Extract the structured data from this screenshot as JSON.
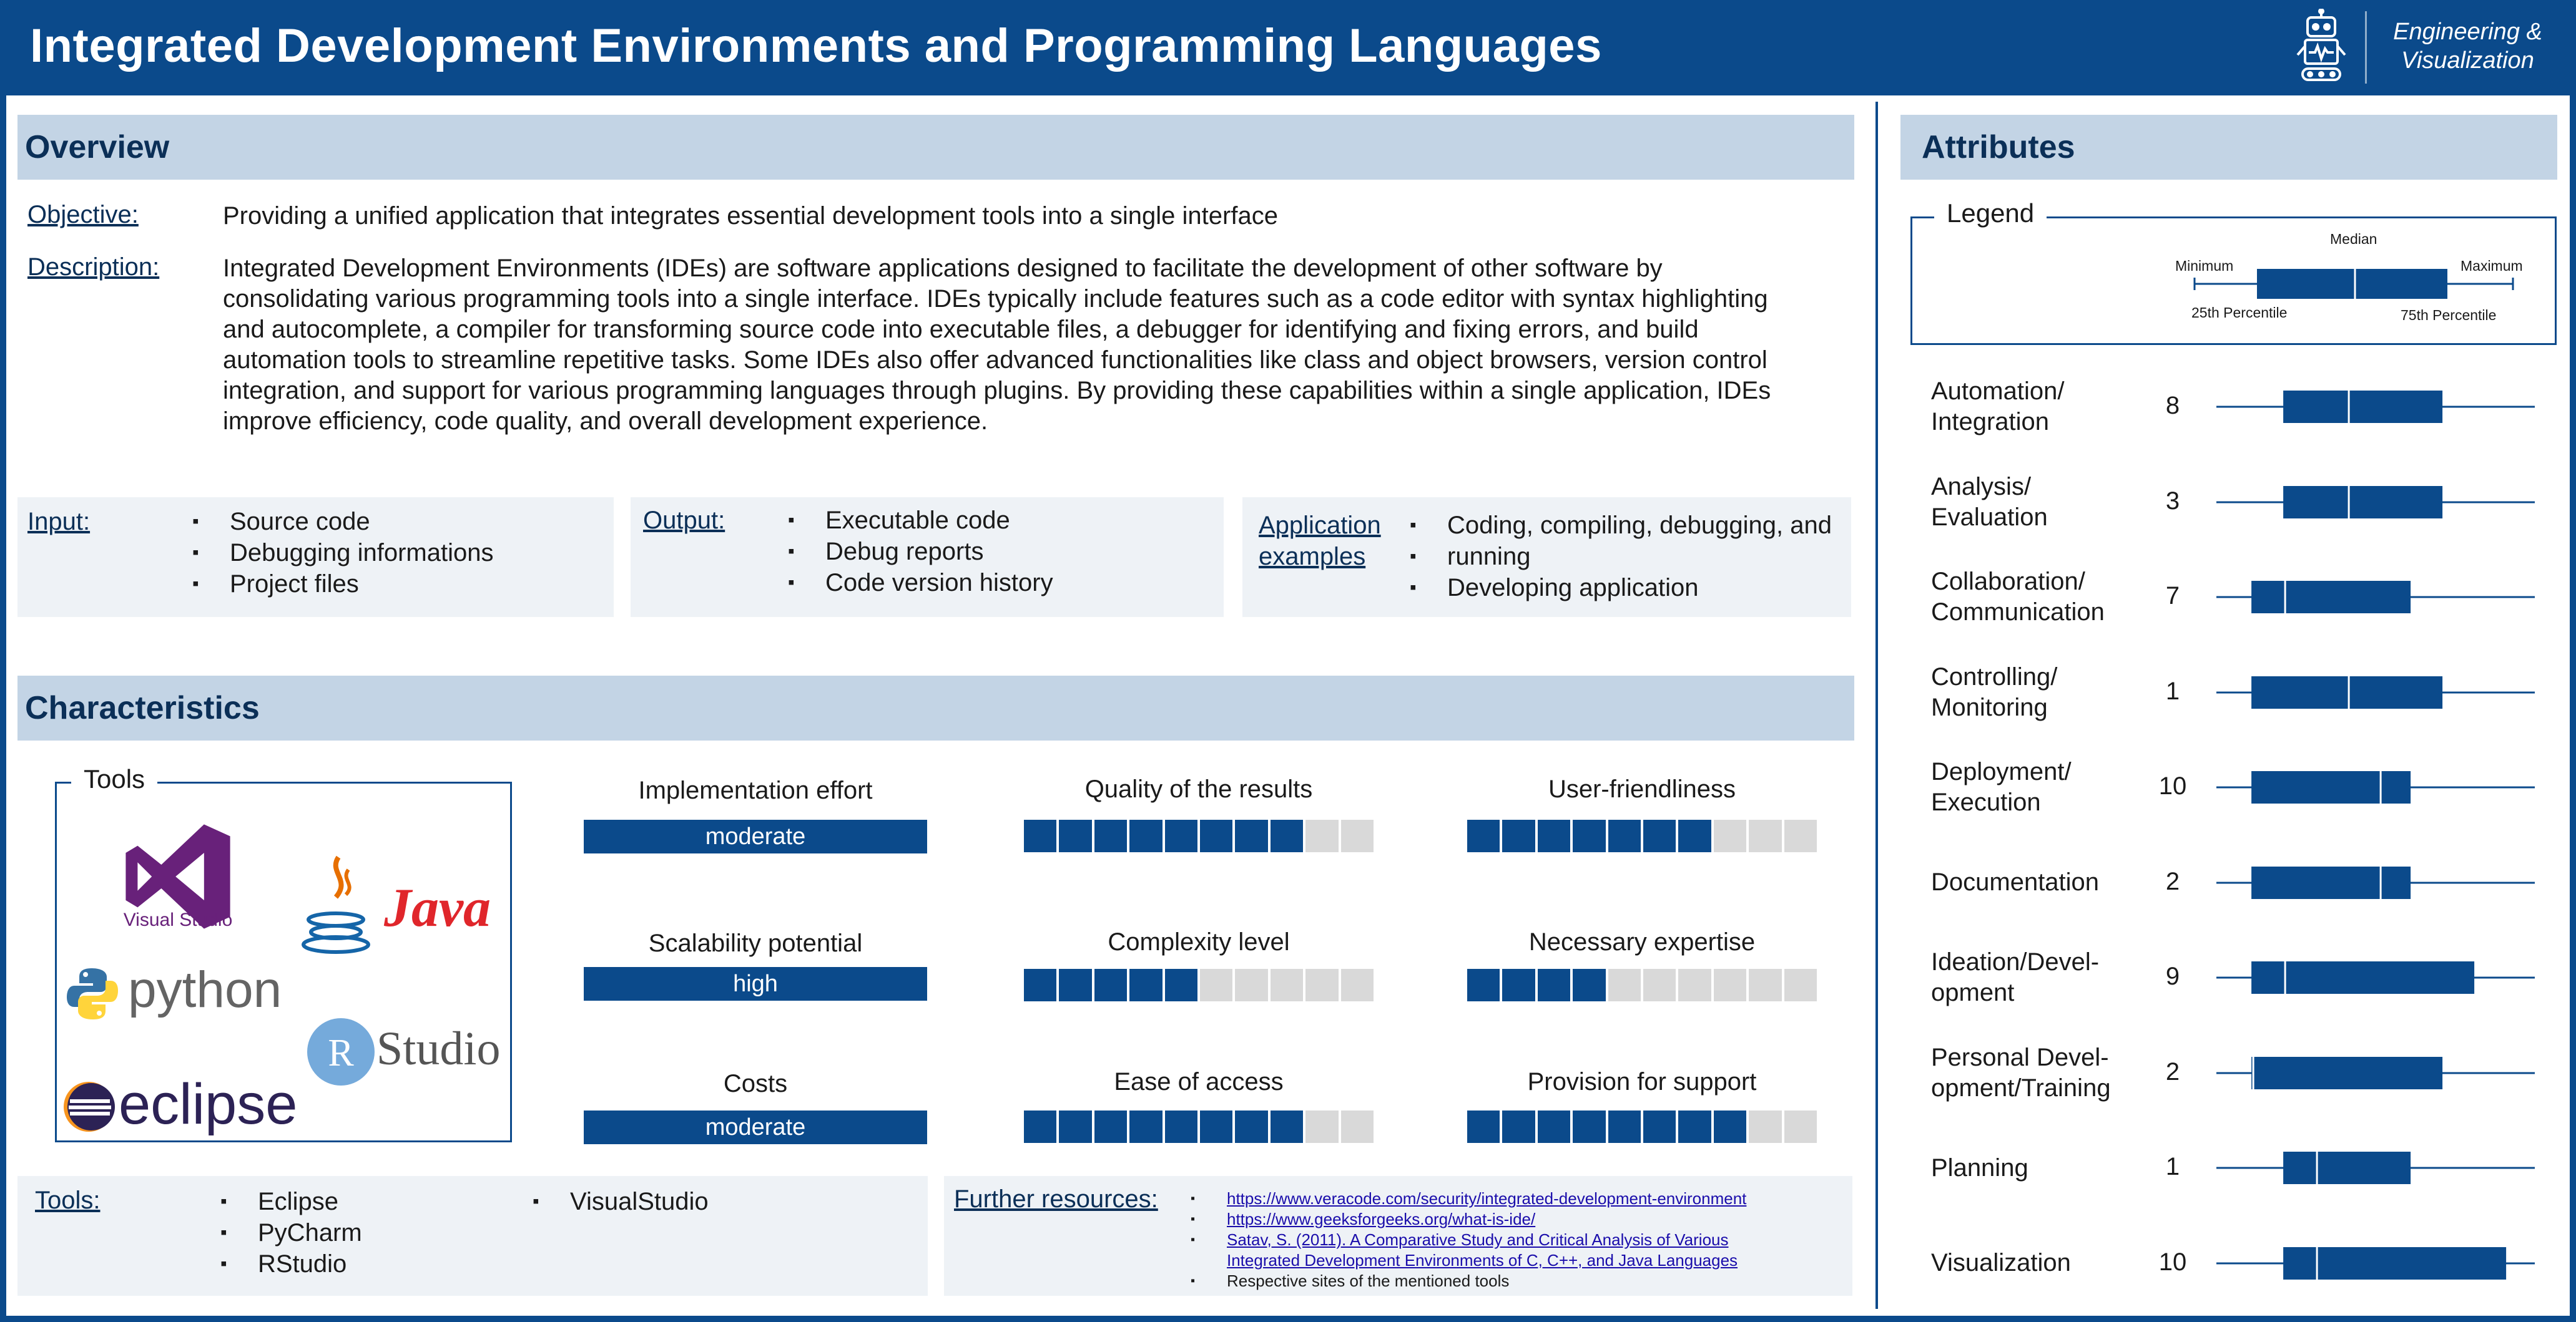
{
  "header": {
    "title": "Integrated Development Environments and Programming Languages",
    "badge_line1": "Engineering &",
    "badge_line2": "Visualization",
    "icon": "robot-icon"
  },
  "colors": {
    "primary": "#0b4a8b",
    "section": "#c3d4e5",
    "panel": "#eef2f6",
    "empty": "#d9d9d9"
  },
  "overview": {
    "heading": "Overview",
    "objective_label": "Objective:",
    "objective": "Providing a unified application that integrates essential development tools into a single interface",
    "description_label": "Description:",
    "description_lines": [
      "Integrated Development Environments (IDEs) are software applications designed to facilitate the development of other software by",
      "consolidating various programming tools into a single interface. IDEs typically include features such as a code editor with syntax highlighting",
      "and autocomplete, a compiler for transforming source code into executable files, a debugger for identifying and fixing errors, and build",
      "automation tools to streamline repetitive tasks. Some IDEs also offer advanced functionalities like class and object browsers, version control",
      "integration, and support for various programming languages through plugins. By providing these capabilities within a single application, IDEs",
      "improve efficiency, code quality, and overall development experience."
    ],
    "input_label": "Input:",
    "input_items": [
      "Source code",
      "Debugging informations",
      "Project files"
    ],
    "output_label": "Output:",
    "output_items": [
      "Executable code",
      "Debug reports",
      "Code version history"
    ],
    "application_label_1": "Application",
    "application_label_2": "examples",
    "application_items": [
      "Coding, compiling, debugging, and",
      "running",
      "Developing application"
    ]
  },
  "characteristics": {
    "heading": "Characteristics",
    "tools_legend": "Tools",
    "logos": [
      "Visual Studio",
      "Java",
      "python",
      "Studio",
      "eclipse"
    ],
    "metrics": {
      "implementation_effort": {
        "label": "Implementation effort",
        "value": "moderate"
      },
      "scalability_potential": {
        "label": "Scalability potential",
        "value": "high"
      },
      "costs": {
        "label": "Costs",
        "value": "moderate"
      },
      "quality_of_results": {
        "label": "Quality of the results",
        "level": 8,
        "max": 10
      },
      "complexity_level": {
        "label": "Complexity level",
        "level": 5,
        "max": 10
      },
      "ease_of_access": {
        "label": "Ease of access",
        "level": 8,
        "max": 10
      },
      "user_friendliness": {
        "label": "User-friendliness",
        "level": 7,
        "max": 10
      },
      "necessary_expertise": {
        "label": "Necessary expertise",
        "level": 4,
        "max": 10
      },
      "provision_for_support": {
        "label": "Provision for support",
        "level": 8,
        "max": 10
      }
    },
    "tools_label": "Tools:",
    "tools_col1": [
      "Eclipse",
      "PyCharm",
      "RStudio"
    ],
    "tools_col2": [
      "VisualStudio"
    ],
    "resources_label": "Further resources:",
    "resources": [
      {
        "text": "https://www.veracode.com/security/integrated-development-environment",
        "link": true
      },
      {
        "text": "https://www.geeksforgeeks.org/what-is-ide/",
        "link": true
      },
      {
        "text": "Satav, S. (2011). A Comparative Study and Critical Analysis of Various",
        "link": true
      },
      {
        "text": "Integrated Development Environments of C, C++, and Java Languages",
        "link": true,
        "continuation": true
      },
      {
        "text": "Respective sites of the mentioned tools",
        "link": false
      }
    ]
  },
  "attributes": {
    "heading": "Attributes",
    "legend": {
      "title": "Legend",
      "median": "Median",
      "minimum": "Minimum",
      "maximum": "Maximum",
      "p25": "25th Percentile",
      "p75": "75th Percentile"
    },
    "items": [
      {
        "name_lines": [
          "Automation/",
          "Integration"
        ],
        "value": "8",
        "q1": 0.21,
        "median": 0.41,
        "q3": 0.71
      },
      {
        "name_lines": [
          "Analysis/",
          "Evaluation"
        ],
        "value": "3",
        "q1": 0.21,
        "median": 0.41,
        "q3": 0.71
      },
      {
        "name_lines": [
          "Collaboration/",
          "Communication"
        ],
        "value": "7",
        "q1": 0.11,
        "median": 0.21,
        "q3": 0.61
      },
      {
        "name_lines": [
          "Controlling/",
          "Monitoring"
        ],
        "value": "1",
        "q1": 0.11,
        "median": 0.41,
        "q3": 0.71
      },
      {
        "name_lines": [
          "Deployment/",
          "Execution"
        ],
        "value": "10",
        "q1": 0.11,
        "median": 0.51,
        "q3": 0.61
      },
      {
        "name_lines": [
          "Documentation"
        ],
        "value": "2",
        "q1": 0.11,
        "median": 0.51,
        "q3": 0.61
      },
      {
        "name_lines": [
          "Ideation/Devel-",
          "opment"
        ],
        "value": "9",
        "q1": 0.11,
        "median": 0.21,
        "q3": 0.81
      },
      {
        "name_lines": [
          "Personal Devel-",
          "opment/Training"
        ],
        "value": "2",
        "q1": 0.11,
        "median": 0.11,
        "q3": 0.71
      },
      {
        "name_lines": [
          "Planning"
        ],
        "value": "1",
        "q1": 0.21,
        "median": 0.31,
        "q3": 0.61
      },
      {
        "name_lines": [
          "Visualization"
        ],
        "value": "10",
        "q1": 0.21,
        "median": 0.31,
        "q3": 0.91
      }
    ]
  }
}
